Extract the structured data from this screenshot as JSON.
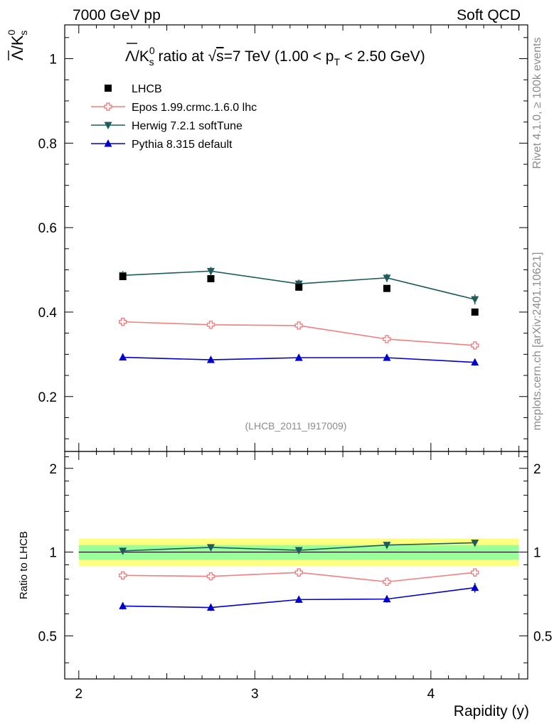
{
  "header": {
    "left": "7000 GeV pp",
    "right": "Soft QCD"
  },
  "side": {
    "top": "Rivet 4.1.0, ≥ 100k events",
    "bottom": "mcplots.cern.ch [arXiv:2401.10621]"
  },
  "chart_data": {
    "type": "line",
    "title": "Λ̅/K⁰s ratio at √s=7 TeV (1.00 < pT < 2.50 GeV)",
    "title_parts": {
      "prefix": "/K",
      "k_sup": "0",
      "k_sub": "s",
      "ratio": " ratio at ",
      "sqrt": "√",
      "s_text": "s",
      "energy": "=7 TeV (1.00 < p",
      "pt_sub": "T",
      "range_end": " < 2.50 GeV)"
    },
    "ylabel_parts": {
      "sym": "Λ",
      "k": "/K",
      "sup": "0",
      "sub": "s"
    },
    "xlabel": "Rapidity (y)",
    "ratio_ylabel": "Ratio to LHCB",
    "watermark": "(LHCB_2011_I917009)",
    "xlim": [
      1.92,
      4.55
    ],
    "ylim": [
      0.07,
      1.08
    ],
    "ratio_ylim": [
      0.35,
      2.3
    ],
    "x": [
      2.25,
      2.75,
      3.25,
      3.75,
      4.25
    ],
    "bin_edges": [
      2.0,
      2.5,
      3.0,
      3.5,
      4.0,
      4.5
    ],
    "x_ticks": [
      2,
      3,
      4
    ],
    "x_tick_labels": [
      "2",
      "3",
      "4"
    ],
    "y_ticks": [
      0.2,
      0.4,
      0.6,
      0.8,
      1
    ],
    "y_tick_labels": [
      "0.2",
      "0.4",
      "0.6",
      "0.8",
      "1"
    ],
    "ratio_ticks": [
      0.5,
      1,
      2
    ],
    "ratio_tick_labels": [
      "0.5",
      "1",
      "2"
    ],
    "data": {
      "name": "LHCB",
      "values": [
        0.484,
        0.479,
        0.459,
        0.456,
        0.4
      ],
      "stat_band": [
        [
          0.94,
          1.06
        ],
        [
          0.94,
          1.06
        ],
        [
          0.94,
          1.06
        ],
        [
          0.94,
          1.06
        ],
        [
          0.94,
          1.06
        ]
      ],
      "total_band": [
        [
          0.89,
          1.12
        ],
        [
          0.89,
          1.12
        ],
        [
          0.89,
          1.12
        ],
        [
          0.89,
          1.12
        ],
        [
          0.89,
          1.12
        ]
      ]
    },
    "series": [
      {
        "name": "Epos 1.99.crmc.1.6.0 lhc",
        "color": "#f08080",
        "marker": "open-cross",
        "values": [
          0.377,
          0.37,
          0.368,
          0.336,
          0.321
        ],
        "errors": [
          0.008,
          0.008,
          0.008,
          0.008,
          0.008
        ],
        "ratio": [
          0.825,
          0.818,
          0.845,
          0.782,
          0.845
        ],
        "ratio_errors": [
          0.018,
          0.018,
          0.018,
          0.025,
          0.025
        ]
      },
      {
        "name": "Herwig 7.2.1 softTune",
        "color": "#1e5c5c",
        "marker": "down-triangle",
        "values": [
          0.487,
          0.497,
          0.467,
          0.481,
          0.43
        ],
        "errors": [
          0.01,
          0.01,
          0.01,
          0.01,
          0.012
        ],
        "ratio": [
          1.01,
          1.04,
          1.015,
          1.06,
          1.08
        ],
        "ratio_errors": [
          0.018,
          0.018,
          0.018,
          0.022,
          0.025
        ]
      },
      {
        "name": "Pythia 8.315 default",
        "color": "#0000cd",
        "marker": "up-triangle",
        "values": [
          0.293,
          0.287,
          0.292,
          0.292,
          0.281
        ],
        "errors": [
          0.006,
          0.006,
          0.006,
          0.006,
          0.008
        ],
        "ratio": [
          0.64,
          0.632,
          0.675,
          0.678,
          0.745
        ],
        "ratio_errors": [
          0.018,
          0.018,
          0.018,
          0.02,
          0.03
        ]
      }
    ]
  }
}
